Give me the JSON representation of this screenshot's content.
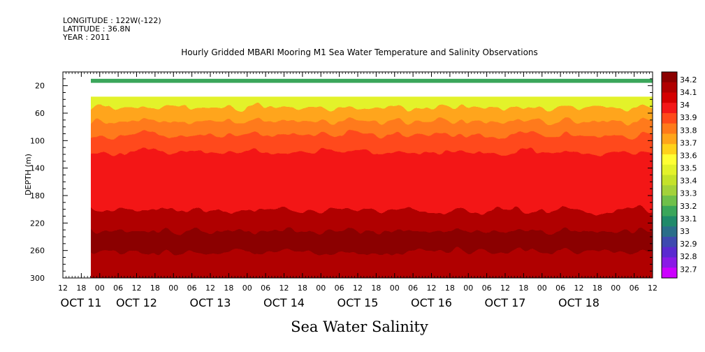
{
  "header": {
    "longitude": "LONGITUDE : 122W(-122)",
    "latitude": "LATITUDE : 36.8N",
    "year": "YEAR : 2011"
  },
  "chart_data": {
    "type": "heatmap",
    "title": "Hourly Gridded MBARI Mooring M1 Sea Water Temperature and Salinity Observations",
    "subtitle": "Sea Water Salinity",
    "ylabel": "DEPTH (m)",
    "xlabel": "",
    "ylim": [
      300,
      0
    ],
    "y_ticks": [
      20,
      60,
      100,
      140,
      180,
      220,
      260,
      300
    ],
    "x_hour_ticks": [
      "12",
      "18",
      "00",
      "06",
      "12",
      "18",
      "00",
      "06",
      "12",
      "18",
      "00",
      "06",
      "12",
      "18",
      "00",
      "06",
      "12",
      "18",
      "00",
      "06",
      "12",
      "18",
      "00",
      "06",
      "12",
      "18",
      "00",
      "06",
      "12",
      "18",
      "00",
      "06",
      "12"
    ],
    "x_day_labels": [
      "OCT 11",
      "OCT 12",
      "OCT 13",
      "OCT 14",
      "OCT 15",
      "OCT 16",
      "OCT 17",
      "OCT 18"
    ],
    "colorbar_levels": [
      "34.2",
      "34.1",
      "34",
      "33.9",
      "33.8",
      "33.7",
      "33.6",
      "33.5",
      "33.4",
      "33.3",
      "33.2",
      "33.1",
      "33",
      "32.9",
      "32.8",
      "32.7"
    ],
    "colorbar_colors": [
      "#8b0000",
      "#b00000",
      "#d40000",
      "#f31818",
      "#ff4a1a",
      "#ff7a1a",
      "#ffa51a",
      "#ffd21a",
      "#ffff33",
      "#e3f22a",
      "#c4e22a",
      "#a3d23a",
      "#6fc04a",
      "#3aa65a",
      "#1f8a6a",
      "#2a6e8a",
      "#3e4ab0",
      "#5a2ad0",
      "#8a1ae6",
      "#cc00ff"
    ],
    "data_start": "OCT 11 20:00",
    "data_end": "OCT 18 12:00",
    "layers": [
      {
        "depth_top": 10,
        "depth_bottom": 16,
        "salinity": 33.2
      },
      {
        "depth_top": 36,
        "depth_bottom": 60,
        "salinity": 33.5
      },
      {
        "depth_top": 60,
        "depth_bottom": 80,
        "salinity": 33.7
      },
      {
        "depth_top": 80,
        "depth_bottom": 100,
        "salinity": 33.8
      },
      {
        "depth_top": 100,
        "depth_bottom": 125,
        "salinity": 33.9
      },
      {
        "depth_top": 125,
        "depth_bottom": 145,
        "salinity": 34.0
      },
      {
        "depth_top": 145,
        "depth_bottom": 210,
        "salinity": 34.0
      },
      {
        "depth_top": 210,
        "depth_bottom": 240,
        "salinity": 34.1
      },
      {
        "depth_top": 240,
        "depth_bottom": 270,
        "salinity": 34.2
      },
      {
        "depth_top": 270,
        "depth_bottom": 300,
        "salinity": 34.1
      }
    ]
  }
}
